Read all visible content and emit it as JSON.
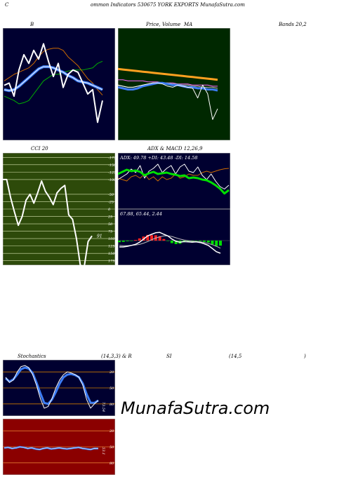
{
  "header": {
    "c_letter": "C",
    "title": "ommon  Indicators 530675 YORK EXPORTS MunafaSutra.com"
  },
  "labels": {
    "bb": "B",
    "price": "Price,",
    "volume": "Volume",
    "ma": "MA",
    "bands": "Bands 20,2",
    "cci": "CCI 20",
    "adx": "ADX  & MACD 12,26,9",
    "stoch_a": "Stochastics",
    "stoch_b": "(14,3,3) & R",
    "stoch_c": "SI",
    "stoch_d": "(14,5",
    "stoch_e": ")"
  },
  "watermark": "MunafaSutra.com",
  "colors": {
    "navy_bg": "#000030",
    "green_bg": "#002800",
    "cci_bg": "#2d4a0a",
    "rsi_bg": "#8b0000",
    "blue_line": "#3d7df5",
    "green_line": "#00b000",
    "orange_line": "#cc6a00"
  },
  "chart_data": [
    {
      "id": "bollinger",
      "type": "line",
      "title": "B",
      "series": [
        {
          "role": "upper",
          "values": [
            96,
            98,
            100,
            103,
            102,
            100,
            94,
            88,
            82,
            79,
            76,
            76,
            74,
            73,
            72,
            72,
            72,
            71,
            70,
            66,
            64
          ]
        },
        {
          "role": "middle",
          "values": [
            90,
            91,
            90,
            87,
            83,
            79,
            75,
            71,
            69,
            69,
            70,
            72,
            74,
            77,
            79,
            82,
            83,
            84,
            86,
            88,
            90
          ]
        },
        {
          "role": "lower",
          "values": [
            82,
            79,
            76,
            74,
            72,
            70,
            66,
            60,
            55,
            53,
            52,
            52,
            54,
            60,
            64,
            68,
            74,
            80,
            84,
            90,
            95
          ]
        },
        {
          "role": "price",
          "values": [
            86,
            84,
            96,
            72,
            58,
            66,
            54,
            62,
            48,
            64,
            78,
            66,
            88,
            76,
            72,
            74,
            84,
            94,
            90,
            120,
            100
          ]
        }
      ]
    },
    {
      "id": "price_ma",
      "type": "line",
      "title": "Price, Volume MA",
      "series": [
        {
          "role": "price",
          "values": [
            60,
            61,
            62,
            62,
            61,
            60,
            59,
            58,
            58,
            59,
            61,
            62,
            60,
            61,
            62,
            63,
            72,
            60,
            68,
            92,
            82
          ]
        },
        {
          "role": "ma_short",
          "values": [
            62,
            63,
            64,
            64,
            63,
            61,
            60,
            59,
            58,
            58,
            59,
            60,
            60,
            61,
            62,
            62,
            63,
            63,
            64,
            64,
            65
          ]
        },
        {
          "role": "ma_mid",
          "values": [
            60,
            61,
            62,
            62,
            61,
            60,
            59,
            58,
            58,
            58,
            58,
            59,
            59,
            60,
            60,
            61,
            61,
            62,
            62,
            62,
            63
          ]
        },
        {
          "role": "ma_long",
          "values": [
            55,
            55,
            56,
            56,
            56,
            56,
            57,
            57,
            57,
            58,
            58,
            58,
            59,
            59,
            59,
            60,
            60,
            60,
            60,
            61,
            61
          ]
        },
        {
          "role": "trend",
          "values": [
            45,
            45.5,
            46,
            46.5,
            47,
            47.5,
            48,
            48.5,
            49,
            49.5,
            50,
            50.5,
            51,
            51.5,
            52,
            52.5,
            53,
            53.5,
            54,
            54.5,
            55
          ]
        }
      ]
    },
    {
      "id": "cci",
      "type": "line",
      "title": "CCI 20",
      "ticks": [
        175,
        150,
        125,
        100,
        75,
        50,
        25,
        0,
        -25,
        -50,
        -100,
        -125,
        -150,
        -175
      ],
      "tick_labels": [
        "175",
        "150",
        "125",
        "100",
        "75",
        "50",
        "25",
        "0",
        "-25",
        "-50",
        "-100",
        "-125",
        "-150",
        "-175"
      ],
      "ylim": [
        -190,
        190
      ],
      "last_value": "91",
      "values": [
        -100,
        -100,
        -40,
        10,
        55,
        25,
        -30,
        -50,
        -20,
        -55,
        -95,
        -60,
        -40,
        -15,
        -55,
        -70,
        -80,
        20,
        35,
        100,
        190,
        195,
        110,
        91
      ]
    },
    {
      "id": "adx",
      "type": "line",
      "readout": "ADX: 49.78  +DI: 43.48  -DI: 14.58",
      "ylim": [
        0,
        70
      ],
      "series": [
        {
          "role": "adx",
          "values": [
            22,
            19,
            16,
            18,
            17,
            19,
            24,
            21,
            19,
            22,
            21,
            20,
            22,
            23,
            25,
            24,
            28,
            27,
            28,
            30,
            31,
            34,
            38,
            43,
            49.78,
            45
          ]
        },
        {
          "role": "plus_di",
          "values": [
            30,
            26,
            22,
            15,
            20,
            10,
            28,
            18,
            14,
            8,
            20,
            14,
            10,
            22,
            12,
            8,
            18,
            20,
            12,
            24,
            30,
            22,
            32,
            40,
            43.48,
            38
          ]
        },
        {
          "role": "minus_di",
          "values": [
            28,
            30,
            32,
            26,
            24,
            28,
            22,
            30,
            26,
            32,
            26,
            30,
            28,
            22,
            28,
            26,
            22,
            24,
            24,
            20,
            18,
            20,
            18,
            16,
            14.58,
            14
          ]
        }
      ]
    },
    {
      "id": "macd",
      "type": "bar",
      "readout": "67.88,  65.44,  2.44",
      "ylim": [
        -6,
        6
      ],
      "series": [
        {
          "role": "macd",
          "values": [
            2,
            2,
            1.8,
            1.5,
            1.2,
            0.5,
            -0.5,
            -1.5,
            -2,
            -2.5,
            -2.6,
            -2,
            -1.5,
            -0.5,
            0.2,
            0.5,
            0.3,
            0.4,
            0.5,
            0.4,
            0.6,
            1,
            1.5,
            2.5,
            3.5,
            4
          ]
        },
        {
          "role": "signal",
          "values": [
            1.5,
            1.6,
            1.6,
            1.5,
            1.4,
            1.2,
            0.8,
            0.3,
            -0.3,
            -0.8,
            -1.2,
            -1.5,
            -1.5,
            -1.3,
            -0.9,
            -0.5,
            -0.2,
            0,
            0.2,
            0.3,
            0.4,
            0.6,
            0.9,
            1.3,
            1.8,
            2.4
          ]
        },
        {
          "role": "histogram",
          "values": [
            0.5,
            0.4,
            0.2,
            0,
            -0.2,
            -0.7,
            -1.3,
            -1.8,
            -1.7,
            -1.7,
            -1.4,
            -0.5,
            0,
            0.8,
            1.1,
            1,
            0.5,
            0.4,
            0.3,
            0.1,
            0.2,
            0.4,
            0.6,
            1.2,
            1.7,
            1.6
          ]
        }
      ]
    },
    {
      "id": "stochastics",
      "type": "line",
      "ticks": [
        80,
        50,
        20
      ],
      "tick_labels": [
        "80",
        "50",
        "20"
      ],
      "ylim": [
        0,
        100
      ],
      "last_value": "73.54",
      "series": [
        {
          "role": "k",
          "values": [
            30,
            40,
            35,
            20,
            10,
            8,
            12,
            25,
            45,
            70,
            88,
            85,
            70,
            50,
            35,
            25,
            20,
            22,
            25,
            30,
            45,
            72,
            88,
            80,
            73.54
          ]
        },
        {
          "role": "d",
          "values": [
            32,
            38,
            34,
            25,
            15,
            12,
            14,
            22,
            40,
            60,
            78,
            80,
            72,
            58,
            42,
            30,
            25,
            24,
            26,
            30,
            42,
            62,
            78,
            78,
            73.54
          ]
        }
      ]
    },
    {
      "id": "rsi",
      "type": "line",
      "ticks": [
        80,
        50,
        20
      ],
      "tick_labels": [
        "80",
        "50",
        "20"
      ],
      "ylim": [
        0,
        100
      ],
      "last_value": "53.1",
      "values": [
        52,
        51,
        53,
        52,
        50,
        51,
        53,
        52,
        54,
        55,
        53,
        52,
        54,
        53,
        52,
        53,
        54,
        53,
        52,
        51,
        53,
        54,
        55,
        53,
        53.1
      ]
    }
  ]
}
